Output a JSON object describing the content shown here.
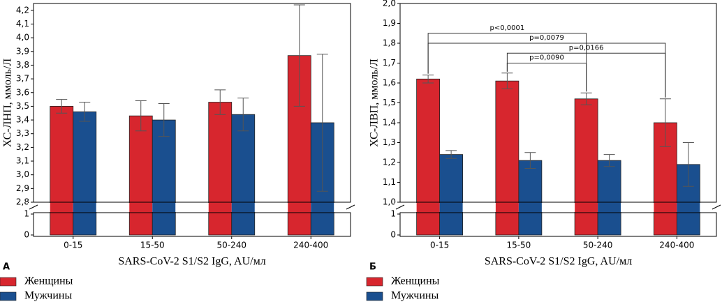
{
  "chart_data": [
    {
      "type": "bar",
      "label": "А",
      "xlabel": "SARS-CoV-2 S1/S2 IgG, AU/мл",
      "ylabel": "ХС-ЛНП, ммоль/Л",
      "categories": [
        "0-15",
        "15-50",
        "50-240",
        "240-400"
      ],
      "series": [
        {
          "name": "Женщины",
          "color": "#d7262e",
          "values": [
            3.5,
            3.43,
            3.53,
            3.87
          ],
          "errors": [
            0.05,
            0.11,
            0.09,
            0.37
          ]
        },
        {
          "name": "Мужчины",
          "color": "#1a4f8f",
          "values": [
            3.46,
            3.4,
            3.44,
            3.38
          ],
          "errors": [
            0.07,
            0.12,
            0.12,
            0.5
          ]
        }
      ],
      "ylim": [
        2.8,
        4.25
      ],
      "yticks": [
        {
          "value": 2.8,
          "label": "2,8"
        },
        {
          "value": 2.9,
          "label": "2,9"
        },
        {
          "value": 3.0,
          "label": "3,0"
        },
        {
          "value": 3.1,
          "label": "3,1"
        },
        {
          "value": 3.2,
          "label": "3,2"
        },
        {
          "value": 3.3,
          "label": "3,3"
        },
        {
          "value": 3.4,
          "label": "3,4"
        },
        {
          "value": 3.5,
          "label": "3,5"
        },
        {
          "value": 3.6,
          "label": "3,6"
        },
        {
          "value": 3.7,
          "label": "3,7"
        },
        {
          "value": 3.8,
          "label": "3,8"
        },
        {
          "value": 3.9,
          "label": "3,9"
        },
        {
          "value": 4.0,
          "label": "4,0"
        },
        {
          "value": 4.1,
          "label": "4,1"
        },
        {
          "value": 4.2,
          "label": "4,2"
        }
      ],
      "ylim_lower": [
        0,
        1
      ],
      "yticks_lower": [
        0,
        1
      ],
      "comparisons": []
    },
    {
      "type": "bar",
      "label": "Б",
      "xlabel": "SARS-CoV-2 S1/S2 IgG, AU/мл",
      "ylabel": "ХС-ЛВП, ммоль/Л",
      "categories": [
        "0-15",
        "15-50",
        "50-240",
        "240-400"
      ],
      "series": [
        {
          "name": "Женщины",
          "color": "#d7262e",
          "values": [
            1.62,
            1.61,
            1.52,
            1.4
          ],
          "errors": [
            0.02,
            0.04,
            0.03,
            0.12
          ]
        },
        {
          "name": "Мужчины",
          "color": "#1a4f8f",
          "values": [
            1.24,
            1.21,
            1.21,
            1.19
          ],
          "errors": [
            0.02,
            0.04,
            0.03,
            0.11
          ]
        }
      ],
      "ylim": [
        1.0,
        2.0
      ],
      "yticks": [
        {
          "value": 1.0,
          "label": "1,0"
        },
        {
          "value": 1.1,
          "label": "1,1"
        },
        {
          "value": 1.2,
          "label": "1,2"
        },
        {
          "value": 1.3,
          "label": "1,3"
        },
        {
          "value": 1.4,
          "label": "1,4"
        },
        {
          "value": 1.5,
          "label": "1,5"
        },
        {
          "value": 1.6,
          "label": "1,6"
        },
        {
          "value": 1.7,
          "label": "1,7"
        },
        {
          "value": 1.8,
          "label": "1,8"
        },
        {
          "value": 1.9,
          "label": "1,9"
        },
        {
          "value": 2.0,
          "label": "2,0"
        }
      ],
      "ylim_lower": [
        0,
        1
      ],
      "yticks_lower": [
        0,
        1
      ],
      "comparisons": [
        {
          "label": "p<0,0001",
          "from": "0-15",
          "to": "50-240",
          "y": 1.85
        },
        {
          "label": "p=0,0079",
          "from": "0-15",
          "to": "240-400",
          "y": 1.8
        },
        {
          "label": "p=0,0166",
          "from": "15-50",
          "to": "240-400",
          "y": 1.75
        },
        {
          "label": "p=0,0090",
          "from": "15-50",
          "to": "50-240",
          "y": 1.7
        }
      ]
    }
  ]
}
